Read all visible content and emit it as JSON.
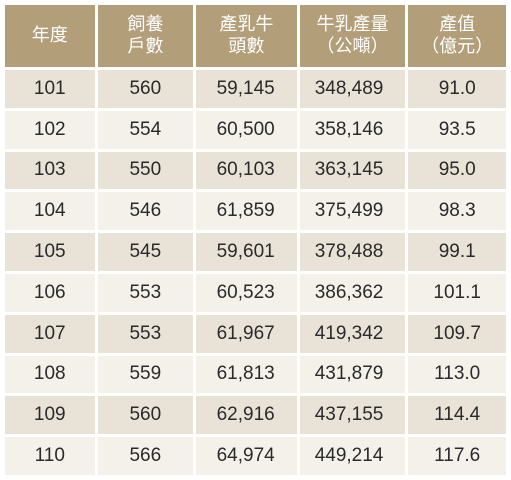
{
  "headers": [
    {
      "lines": [
        "年度"
      ]
    },
    {
      "lines": [
        "飼養",
        "戶數"
      ]
    },
    {
      "lines": [
        "產乳牛",
        "頭數"
      ]
    },
    {
      "lines": [
        "牛乳產量",
        "（公噸）"
      ]
    },
    {
      "lines": [
        "產值",
        "（億元）"
      ]
    }
  ],
  "rows": [
    [
      "101",
      "560",
      "59,145",
      "348,489",
      "91.0"
    ],
    [
      "102",
      "554",
      "60,500",
      "358,146",
      "93.5"
    ],
    [
      "103",
      "550",
      "60,103",
      "363,145",
      "95.0"
    ],
    [
      "104",
      "546",
      "61,859",
      "375,499",
      "98.3"
    ],
    [
      "105",
      "545",
      "59,601",
      "378,488",
      "99.1"
    ],
    [
      "106",
      "553",
      "60,523",
      "386,362",
      "101.1"
    ],
    [
      "107",
      "553",
      "61,967",
      "419,342",
      "109.7"
    ],
    [
      "108",
      "559",
      "61,813",
      "431,879",
      "113.0"
    ],
    [
      "109",
      "560",
      "62,916",
      "437,155",
      "114.4"
    ],
    [
      "110",
      "566",
      "64,974",
      "449,214",
      "117.6"
    ]
  ],
  "colors": {
    "header_bg": "#b29e78",
    "row_odd_bg": "#e9e3d7",
    "row_even_bg": "#f4f1ea"
  }
}
